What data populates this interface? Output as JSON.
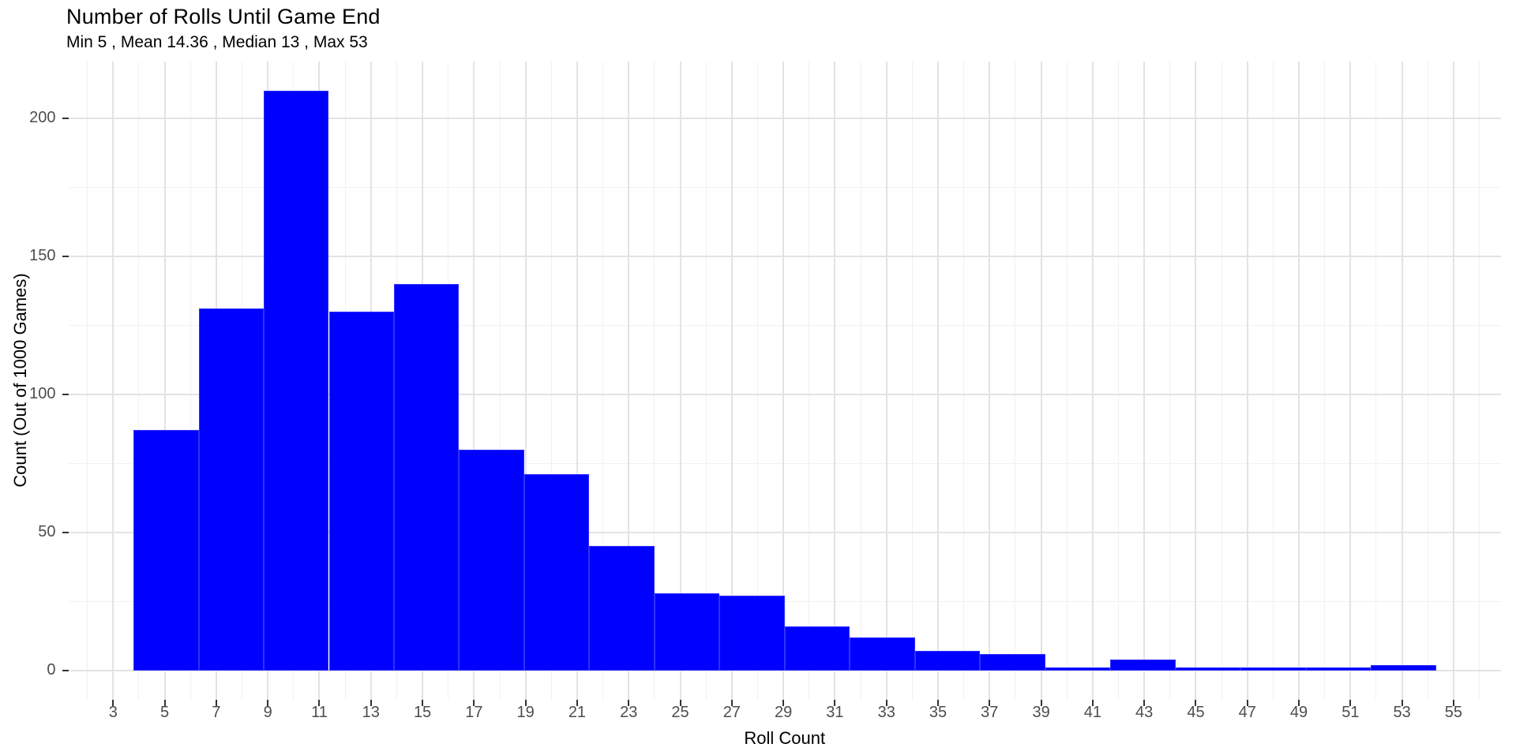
{
  "chart_data": {
    "type": "bar",
    "subtype": "histogram",
    "title": "Number of Rolls Until Game End",
    "subtitle": "Min 5 , Mean 14.36 , Median 13 , Max 53",
    "xlabel": "Roll Count",
    "ylabel": "Count (Out of 1000 Games)",
    "stats": {
      "min": 5,
      "mean": 14.36,
      "median": 13,
      "max": 53
    },
    "total_games": 1000,
    "bin_start": 3.7895,
    "bin_width": 2.5263,
    "bin_edges": [
      3.789,
      6.316,
      8.842,
      11.368,
      13.895,
      16.421,
      18.947,
      21.474,
      24.0,
      26.526,
      29.053,
      31.579,
      34.105,
      36.632,
      39.158,
      41.684,
      44.211,
      46.737,
      49.263,
      51.789,
      54.316
    ],
    "bin_centers": [
      5.05,
      7.58,
      10.11,
      12.63,
      15.16,
      17.68,
      20.21,
      22.74,
      25.26,
      27.79,
      30.32,
      32.84,
      35.37,
      37.89,
      40.42,
      42.95,
      45.47,
      48.0,
      50.53,
      53.05
    ],
    "values": [
      87,
      131,
      210,
      130,
      140,
      80,
      71,
      45,
      28,
      27,
      16,
      12,
      7,
      6,
      1,
      4,
      1,
      1,
      1,
      2
    ],
    "x_ticks": [
      3,
      5,
      7,
      9,
      11,
      13,
      15,
      17,
      19,
      21,
      23,
      25,
      27,
      29,
      31,
      33,
      35,
      37,
      39,
      41,
      43,
      45,
      47,
      49,
      51,
      53,
      55
    ],
    "x_minor_gridlines": [
      2,
      4,
      6,
      8,
      10,
      12,
      14,
      16,
      18,
      20,
      22,
      24,
      26,
      28,
      30,
      32,
      34,
      36,
      38,
      40,
      42,
      44,
      46,
      48,
      50,
      52,
      54,
      56
    ],
    "y_ticks": [
      0,
      50,
      100,
      150,
      200
    ],
    "y_minor_gridlines": [
      25,
      75,
      125,
      175
    ],
    "xlim": [
      1.26,
      56.84
    ],
    "ylim": [
      -10.5,
      220.5
    ],
    "grid": true,
    "legend": "none",
    "bar_color": "#0000ff",
    "background_color": "#ffffff",
    "grid_major_color": "#e3e3e3",
    "grid_minor_color": "#f1f1f1",
    "axis_text_color": "#4d4d4d",
    "tick_mark_color": "#333333",
    "title_color": "#000000"
  }
}
